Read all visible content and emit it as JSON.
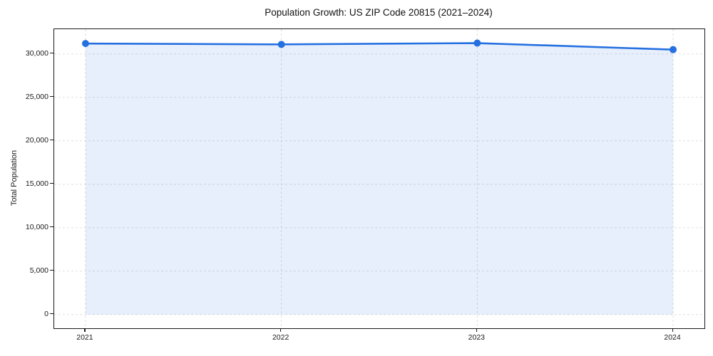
{
  "chart_data": {
    "type": "line",
    "title": "Population Growth: US ZIP Code 20815 (2021–2024)",
    "xlabel": "",
    "ylabel": "Total Population",
    "x": [
      2021,
      2022,
      2023,
      2024
    ],
    "xtick_labels": [
      "2021",
      "2022",
      "2023",
      "2024"
    ],
    "series": [
      {
        "name": "Total Population",
        "values": [
          31200,
          31100,
          31250,
          30500
        ]
      }
    ],
    "yticks": [
      0,
      5000,
      10000,
      15000,
      20000,
      25000,
      30000
    ],
    "ytick_labels": [
      "0",
      "5,000",
      "10,000",
      "15,000",
      "20,000",
      "25,000",
      "30,000"
    ],
    "xlim": [
      2020.84,
      2024.16
    ],
    "ylim": [
      -1570,
      32850
    ],
    "grid": true,
    "grid_style": "dashed",
    "legend_position": "none",
    "line_color": "#2570e0",
    "marker": "circle",
    "marker_size": 5,
    "area_fill": true,
    "fill_color": "rgba(37,112,224,0.11)",
    "fill_baseline": 0
  }
}
